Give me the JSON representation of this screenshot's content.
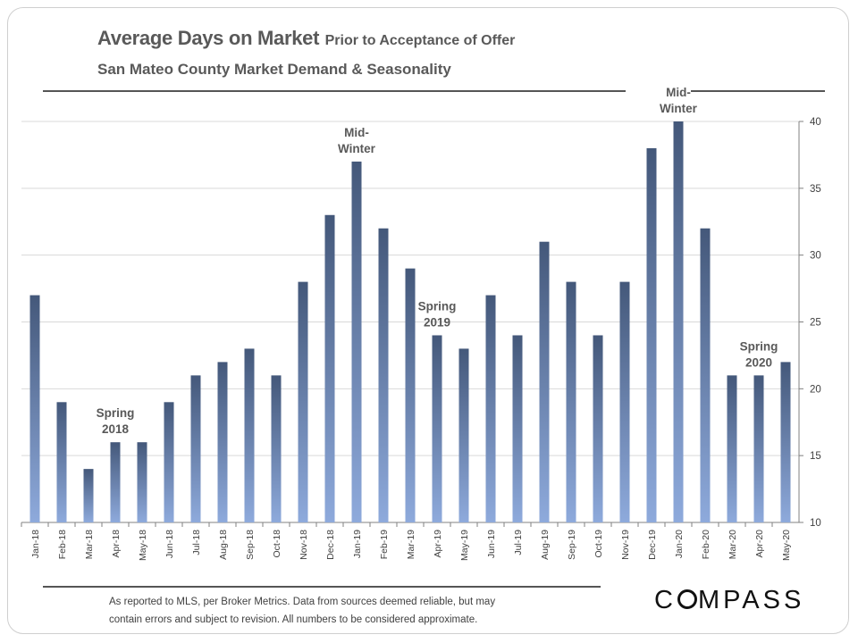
{
  "header": {
    "title": "Average Days on Market",
    "title_suffix": "Prior to Acceptance of Offer",
    "subtitle": "San Mateo County Market Demand  & Seasonality"
  },
  "footer": {
    "note_line1": "As reported to MLS, per Broker Metrics. Data from sources deemed reliable, but may",
    "note_line2": "contain errors and subject  to revision.  All numbers to be considered approximate.",
    "logo_pre": "C",
    "logo_post": "MPASS"
  },
  "colors": {
    "bar_top": "#44587a",
    "bar_bottom": "#8eaadc",
    "grid": "#d9d9d9",
    "axis": "#808080"
  },
  "chart_data": {
    "type": "bar",
    "title": "Average Days on Market Prior to Acceptance of Offer",
    "subtitle": "San Mateo County Market Demand  & Seasonality",
    "categories": [
      "Jan-18",
      "Feb-18",
      "Mar-18",
      "Apr-18",
      "May-18",
      "Jun-18",
      "Jul-18",
      "Aug-18",
      "Sep-18",
      "Oct-18",
      "Nov-18",
      "Dec-18",
      "Jan-19",
      "Feb-19",
      "Mar-19",
      "Apr-19",
      "May-19",
      "Jun-19",
      "Jul-19",
      "Aug-19",
      "Sep-19",
      "Oct-19",
      "Nov-19",
      "Dec-19",
      "Jan-20",
      "Feb-20",
      "Mar-20",
      "Apr-20",
      "May-20"
    ],
    "values": [
      27,
      19,
      14,
      16,
      16,
      19,
      21,
      22,
      23,
      21,
      28,
      33,
      37,
      32,
      29,
      24,
      23,
      27,
      24,
      31,
      28,
      24,
      28,
      38,
      40,
      32,
      21,
      21,
      22
    ],
    "ylim": [
      10,
      40
    ],
    "yticks": [
      10,
      15,
      20,
      25,
      30,
      35,
      40
    ],
    "y_axis_side": "right",
    "grid": true,
    "xlabel": "",
    "ylabel": "",
    "annotations": [
      {
        "lines": [
          "Spring",
          "2018"
        ],
        "category": "Apr-18",
        "y": 16
      },
      {
        "lines": [
          "Mid-",
          "Winter"
        ],
        "category": "Jan-19",
        "y": 37
      },
      {
        "lines": [
          "Spring",
          "2019"
        ],
        "category": "Apr-19",
        "y": 24
      },
      {
        "lines": [
          "Mid-",
          "Winter"
        ],
        "category": "Jan-20",
        "y": 40
      },
      {
        "lines": [
          "Spring",
          "2020"
        ],
        "category": "Apr-20",
        "y": 21
      }
    ]
  }
}
